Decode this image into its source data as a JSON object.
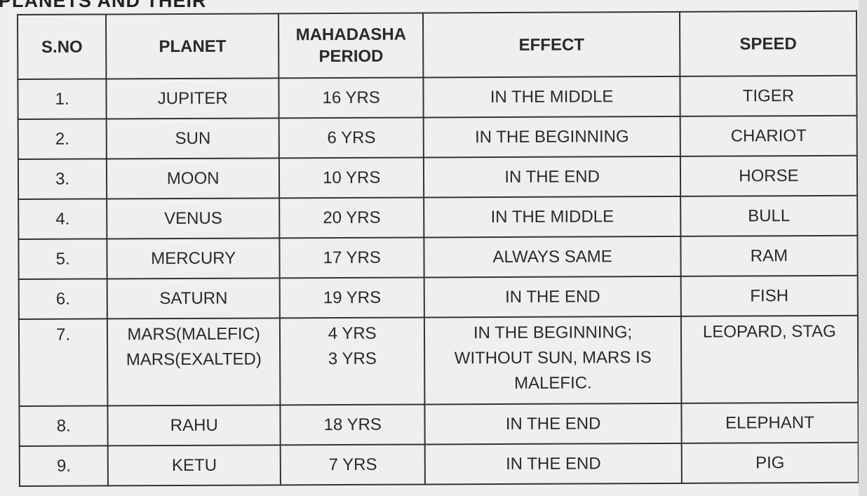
{
  "heading": "PLANETS AND THEIR",
  "table": {
    "headers": [
      "S.NO",
      "PLANET",
      "MAHADASHA PERIOD",
      "EFFECT",
      "SPEED"
    ],
    "rows": [
      {
        "sno": "1.",
        "planet": "JUPITER",
        "period": "16 YRS",
        "effect": "IN THE MIDDLE",
        "speed": "TIGER"
      },
      {
        "sno": "2.",
        "planet": "SUN",
        "period": "6 YRS",
        "effect": "IN THE BEGINNING",
        "speed": "CHARIOT"
      },
      {
        "sno": "3.",
        "planet": "MOON",
        "period": "10 YRS",
        "effect": "IN THE END",
        "speed": "HORSE"
      },
      {
        "sno": "4.",
        "planet": "VENUS",
        "period": "20 YRS",
        "effect": "IN THE MIDDLE",
        "speed": "BULL"
      },
      {
        "sno": "5.",
        "planet": "MERCURY",
        "period": "17 YRS",
        "effect": "ALWAYS SAME",
        "speed": "RAM"
      },
      {
        "sno": "6.",
        "planet": "SATURN",
        "period": "19 YRS",
        "effect": "IN THE END",
        "speed": "FISH"
      },
      {
        "sno": "7.",
        "planet": "MARS(MALEFIC)",
        "planet2": "MARS(EXALTED)",
        "period": "4 YRS",
        "period2": "3 YRS",
        "effect": "IN THE BEGINNING;",
        "effect2": "WITHOUT SUN, MARS IS",
        "effect3": "MALEFIC.",
        "speed": "LEOPARD, STAG"
      },
      {
        "sno": "8.",
        "planet": "RAHU",
        "period": "18 YRS",
        "effect": "IN THE END",
        "speed": "ELEPHANT"
      },
      {
        "sno": "9.",
        "planet": "KETU",
        "period": "7 YRS",
        "effect": "IN THE END",
        "speed": "PIG"
      }
    ]
  }
}
